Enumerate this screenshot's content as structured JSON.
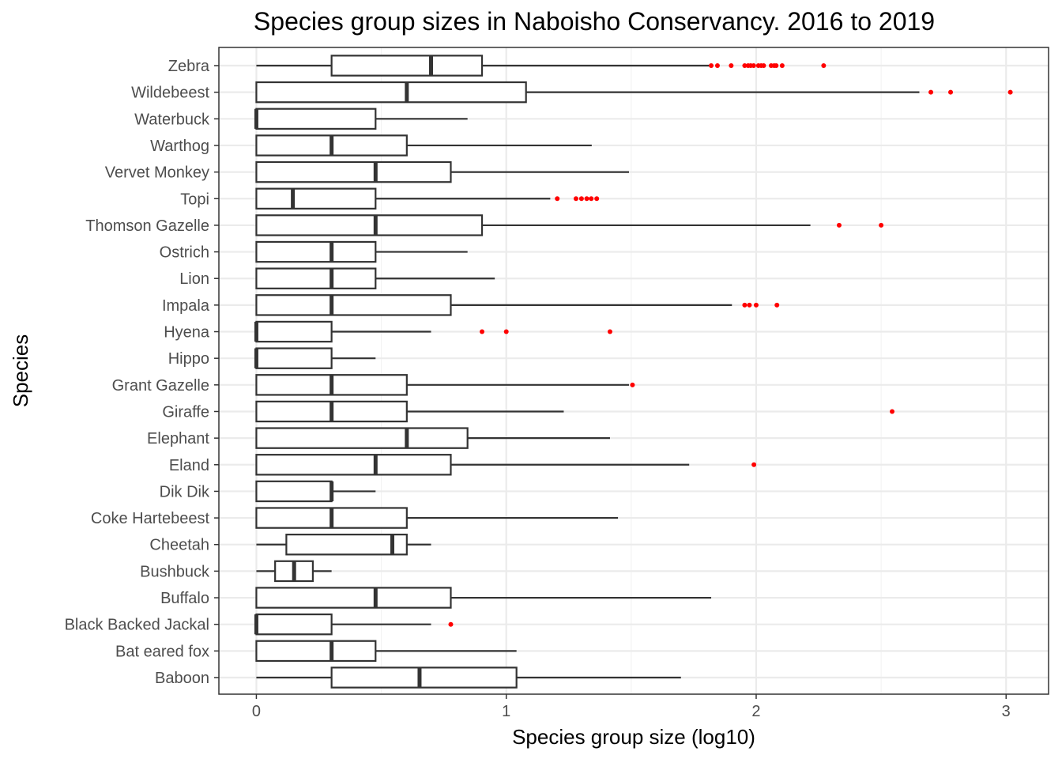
{
  "chart_data": {
    "type": "boxplot",
    "orientation": "horizontal",
    "title": "Species group sizes in Naboisho Conservancy. 2016 to 2019",
    "xlabel": "Species group size (log10)",
    "ylabel": "Species",
    "xlim": [
      -0.15,
      3.17
    ],
    "xticks": [
      0,
      1,
      2,
      3
    ],
    "xtick_labels": [
      "0",
      "1",
      "2",
      "3"
    ],
    "grid": true,
    "outlier_color": "#ff0000",
    "box_stroke_color": "#333333",
    "species": [
      {
        "name": "Zebra",
        "whisker_low": 0,
        "q1": 0.301,
        "median": 0.699,
        "q3": 0.903,
        "whisker_high": 1.813,
        "outliers": [
          1.82,
          1.845,
          1.9,
          1.954,
          1.968,
          1.978,
          1.99,
          2.009,
          2.02,
          2.03,
          2.06,
          2.072,
          2.08,
          2.104,
          2.27
        ]
      },
      {
        "name": "Wildebeest",
        "whisker_low": 0,
        "q1": 0,
        "median": 0.602,
        "q3": 1.079,
        "whisker_high": 2.653,
        "outliers": [
          2.699,
          2.778,
          3.017
        ]
      },
      {
        "name": "Waterbuck",
        "whisker_low": 0,
        "q1": 0,
        "median": 0,
        "q3": 0.477,
        "whisker_high": 0.845,
        "outliers": []
      },
      {
        "name": "Warthog",
        "whisker_low": 0,
        "q1": 0,
        "median": 0.301,
        "q3": 0.602,
        "whisker_high": 1.342,
        "outliers": []
      },
      {
        "name": "Vervet Monkey",
        "whisker_low": 0,
        "q1": 0,
        "median": 0.477,
        "q3": 0.778,
        "whisker_high": 1.491,
        "outliers": []
      },
      {
        "name": "Topi",
        "whisker_low": 0,
        "q1": 0,
        "median": 0.146,
        "q3": 0.477,
        "whisker_high": 1.176,
        "outliers": [
          1.204,
          1.279,
          1.301,
          1.322,
          1.34,
          1.362
        ]
      },
      {
        "name": "Thomson Gazelle",
        "whisker_low": 0,
        "q1": 0,
        "median": 0.477,
        "q3": 0.903,
        "whisker_high": 2.217,
        "outliers": [
          2.332,
          2.5
        ]
      },
      {
        "name": "Ostrich",
        "whisker_low": 0,
        "q1": 0,
        "median": 0.301,
        "q3": 0.477,
        "whisker_high": 0.845,
        "outliers": []
      },
      {
        "name": "Lion",
        "whisker_low": 0,
        "q1": 0,
        "median": 0.301,
        "q3": 0.477,
        "whisker_high": 0.954,
        "outliers": []
      },
      {
        "name": "Impala",
        "whisker_low": 0,
        "q1": 0,
        "median": 0.301,
        "q3": 0.778,
        "whisker_high": 1.903,
        "outliers": [
          1.954,
          1.973,
          2.0,
          2.083
        ]
      },
      {
        "name": "Hyena",
        "whisker_low": 0,
        "q1": 0,
        "median": 0,
        "q3": 0.301,
        "whisker_high": 0.699,
        "outliers": [
          0.903,
          1.0,
          1.415
        ]
      },
      {
        "name": "Hippo",
        "whisker_low": 0,
        "q1": 0,
        "median": 0,
        "q3": 0.301,
        "whisker_high": 0.477,
        "outliers": []
      },
      {
        "name": "Grant Gazelle",
        "whisker_low": 0,
        "q1": 0,
        "median": 0.301,
        "q3": 0.602,
        "whisker_high": 1.491,
        "outliers": [
          1.505
        ]
      },
      {
        "name": "Giraffe",
        "whisker_low": 0,
        "q1": 0,
        "median": 0.301,
        "q3": 0.602,
        "whisker_high": 1.23,
        "outliers": [
          2.544
        ]
      },
      {
        "name": "Elephant",
        "whisker_low": 0,
        "q1": 0,
        "median": 0.602,
        "q3": 0.845,
        "whisker_high": 1.415,
        "outliers": []
      },
      {
        "name": "Eland",
        "whisker_low": 0,
        "q1": 0,
        "median": 0.477,
        "q3": 0.778,
        "whisker_high": 1.732,
        "outliers": [
          1.991
        ]
      },
      {
        "name": "Dik Dik",
        "whisker_low": 0,
        "q1": 0,
        "median": 0.301,
        "q3": 0.301,
        "whisker_high": 0.477,
        "outliers": []
      },
      {
        "name": "Coke Hartebeest",
        "whisker_low": 0,
        "q1": 0,
        "median": 0.301,
        "q3": 0.602,
        "whisker_high": 1.447,
        "outliers": []
      },
      {
        "name": "Cheetah",
        "whisker_low": 0,
        "q1": 0.12,
        "median": 0.544,
        "q3": 0.602,
        "whisker_high": 0.699,
        "outliers": []
      },
      {
        "name": "Bushbuck",
        "whisker_low": 0,
        "q1": 0.075,
        "median": 0.151,
        "q3": 0.226,
        "whisker_high": 0.301,
        "outliers": []
      },
      {
        "name": "Buffalo",
        "whisker_low": 0,
        "q1": 0,
        "median": 0.477,
        "q3": 0.778,
        "whisker_high": 1.82,
        "outliers": []
      },
      {
        "name": "Black Backed Jackal",
        "whisker_low": 0,
        "q1": 0,
        "median": 0,
        "q3": 0.301,
        "whisker_high": 0.699,
        "outliers": [
          0.778
        ]
      },
      {
        "name": "Bat eared fox",
        "whisker_low": 0,
        "q1": 0,
        "median": 0.301,
        "q3": 0.477,
        "whisker_high": 1.041,
        "outliers": []
      },
      {
        "name": "Baboon",
        "whisker_low": 0,
        "q1": 0.301,
        "median": 0.653,
        "q3": 1.041,
        "whisker_high": 1.699,
        "outliers": []
      }
    ]
  }
}
